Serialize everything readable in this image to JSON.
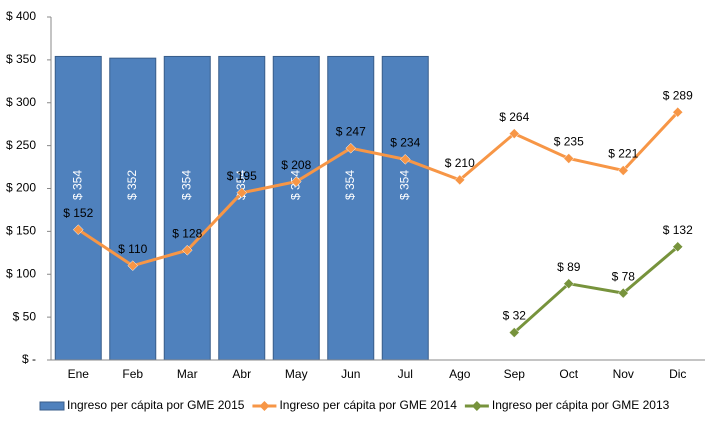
{
  "chart_data": {
    "type": "combo",
    "categories": [
      "Ene",
      "Feb",
      "Mar",
      "Abr",
      "May",
      "Jun",
      "Jul",
      "Ago",
      "Sep",
      "Oct",
      "Nov",
      "Dic"
    ],
    "series": [
      {
        "name": "Ingreso per cápita por GME 2015",
        "type": "bar",
        "color": "#4f81bd",
        "values": [
          354,
          352,
          354,
          354,
          354,
          354,
          354,
          null,
          null,
          null,
          null,
          null
        ],
        "value_labels": [
          "$ 354",
          "$ 352",
          "$ 354",
          "$ 354",
          "$ 354",
          "$ 354",
          "$ 354",
          null,
          null,
          null,
          null,
          null
        ]
      },
      {
        "name": "Ingreso per cápita por GME 2014",
        "type": "line",
        "color": "#f79646",
        "values": [
          152,
          110,
          128,
          195,
          208,
          247,
          234,
          210,
          264,
          235,
          221,
          289
        ],
        "value_labels": [
          "$ 152",
          "$ 110",
          "$ 128",
          "$ 195",
          "$ 208",
          "$ 247",
          "$ 234",
          "$ 210",
          "$ 264",
          "$ 235",
          "$ 221",
          "$ 289"
        ]
      },
      {
        "name": "Ingreso per cápita por GME 2013",
        "type": "line",
        "color": "#77933c",
        "values": [
          null,
          null,
          null,
          null,
          null,
          null,
          null,
          null,
          32,
          89,
          78,
          132
        ],
        "value_labels": [
          null,
          null,
          null,
          null,
          null,
          null,
          null,
          null,
          "$ 32",
          "$ 89",
          "$ 78",
          "$ 132"
        ]
      }
    ],
    "ylim": [
      0,
      400
    ],
    "yticks": [
      {
        "value": 0,
        "label": "$ -"
      },
      {
        "value": 50,
        "label": "$ 50"
      },
      {
        "value": 100,
        "label": "$ 100"
      },
      {
        "value": 150,
        "label": "$ 150"
      },
      {
        "value": 200,
        "label": "$ 200"
      },
      {
        "value": 250,
        "label": "$ 250"
      },
      {
        "value": 300,
        "label": "$ 300"
      },
      {
        "value": 350,
        "label": "$ 350"
      },
      {
        "value": 400,
        "label": "$ 400"
      }
    ],
    "legend": "bottom"
  }
}
